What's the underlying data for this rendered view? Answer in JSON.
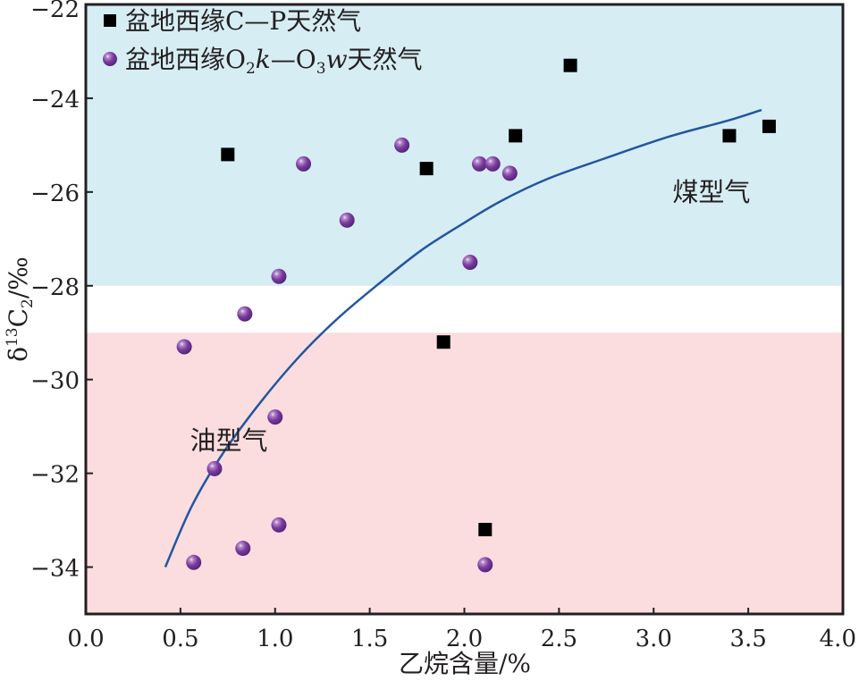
{
  "chart_data": {
    "type": "scatter",
    "title": "",
    "xlabel": "乙烷含量/%",
    "ylabel": {
      "prefix": "δ",
      "sup": "13",
      "main": "C",
      "sub": "2",
      "suffix": "/‰"
    },
    "xlim": [
      0.0,
      4.0
    ],
    "ylim": [
      -35,
      -22
    ],
    "x_ticks": [
      "0.0",
      "0.5",
      "1.0",
      "1.5",
      "2.0",
      "2.5",
      "3.0",
      "3.5",
      "4.0"
    ],
    "x_tick_values": [
      0.0,
      0.5,
      1.0,
      1.5,
      2.0,
      2.5,
      3.0,
      3.5,
      4.0
    ],
    "y_ticks": [
      "−22",
      "−24",
      "−26",
      "−28",
      "−30",
      "−32",
      "−34"
    ],
    "y_tick_values": [
      -22,
      -24,
      -26,
      -28,
      -30,
      -32,
      -34
    ],
    "grid": false,
    "legend_position": "top-left",
    "regions": [
      {
        "name": "煤型气",
        "y_range": [
          -28,
          -22
        ],
        "color": "#d7edf4"
      },
      {
        "name": "油型气",
        "y_range": [
          -35,
          -29
        ],
        "color": "#fbdde0"
      }
    ],
    "annotations": [
      {
        "text": "煤型气",
        "x": 3.1,
        "y": -26.0
      },
      {
        "text": "油型气",
        "x": 0.55,
        "y": -31.3
      }
    ],
    "legend": [
      {
        "marker": "square",
        "parts": {
          "a": "盆地西缘C—P天然气"
        }
      },
      {
        "marker": "circle",
        "parts": {
          "a": "盆地西缘O",
          "b": "2",
          "c": "k",
          "d": "—O",
          "e": "3",
          "f": "w",
          "g": "天然气"
        }
      }
    ],
    "series": [
      {
        "name": "盆地西缘C—P天然气",
        "marker": "square",
        "color": "#000000",
        "points": [
          {
            "x": 0.75,
            "y": -25.2
          },
          {
            "x": 1.8,
            "y": -25.5
          },
          {
            "x": 1.89,
            "y": -29.2
          },
          {
            "x": 2.11,
            "y": -33.2
          },
          {
            "x": 2.27,
            "y": -24.8
          },
          {
            "x": 2.56,
            "y": -23.3
          },
          {
            "x": 3.4,
            "y": -24.8
          },
          {
            "x": 3.61,
            "y": -24.6
          }
        ]
      },
      {
        "name": "盆地西缘O2k—O3w天然气",
        "marker": "circle",
        "color": "#7a3d9e",
        "points": [
          {
            "x": 0.52,
            "y": -29.3
          },
          {
            "x": 0.57,
            "y": -33.9
          },
          {
            "x": 0.68,
            "y": -31.9
          },
          {
            "x": 0.83,
            "y": -33.6
          },
          {
            "x": 0.84,
            "y": -28.6
          },
          {
            "x": 1.0,
            "y": -30.8
          },
          {
            "x": 1.02,
            "y": -27.8
          },
          {
            "x": 1.02,
            "y": -33.1
          },
          {
            "x": 1.15,
            "y": -25.4
          },
          {
            "x": 1.38,
            "y": -26.6
          },
          {
            "x": 1.67,
            "y": -25.0
          },
          {
            "x": 2.03,
            "y": -27.5
          },
          {
            "x": 2.08,
            "y": -25.4
          },
          {
            "x": 2.11,
            "y": -33.95
          },
          {
            "x": 2.15,
            "y": -25.4
          },
          {
            "x": 2.24,
            "y": -25.6
          }
        ]
      },
      {
        "name": "trend-curve",
        "type": "line",
        "color": "#2356a0",
        "points": [
          {
            "x": 0.42,
            "y": -34.0
          },
          {
            "x": 0.56,
            "y": -32.7
          },
          {
            "x": 0.72,
            "y": -31.6
          },
          {
            "x": 0.92,
            "y": -30.5
          },
          {
            "x": 1.13,
            "y": -29.5
          },
          {
            "x": 1.33,
            "y": -28.7
          },
          {
            "x": 1.55,
            "y": -27.95
          },
          {
            "x": 1.77,
            "y": -27.25
          },
          {
            "x": 1.97,
            "y": -26.73
          },
          {
            "x": 2.19,
            "y": -26.2
          },
          {
            "x": 2.44,
            "y": -25.72
          },
          {
            "x": 2.73,
            "y": -25.3
          },
          {
            "x": 3.08,
            "y": -24.82
          },
          {
            "x": 3.39,
            "y": -24.48
          },
          {
            "x": 3.57,
            "y": -24.25
          }
        ]
      }
    ]
  }
}
